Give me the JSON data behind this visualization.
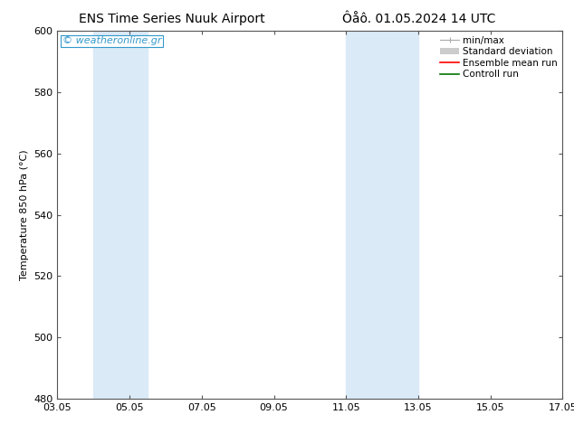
{
  "title_left": "ENS Time Series Nuuk Airport",
  "title_right": "Ôåô. 01.05.2024 14 UTC",
  "ylabel": "Temperature 850 hPa (°C)",
  "ylim": [
    480,
    600
  ],
  "yticks": [
    480,
    500,
    520,
    540,
    560,
    580,
    600
  ],
  "x_numeric": [
    3,
    5,
    7,
    9,
    11,
    13,
    15,
    17
  ],
  "xlim": [
    3,
    17
  ],
  "xtick_labels": [
    "03.05",
    "05.05",
    "07.05",
    "09.05",
    "11.05",
    "13.05",
    "15.05",
    "17.05"
  ],
  "shaded_bands": [
    {
      "x_start": 4.0,
      "x_end": 5.5,
      "color": "#daeaf7"
    },
    {
      "x_start": 11.0,
      "x_end": 13.0,
      "color": "#daeaf7"
    }
  ],
  "watermark_text": "© weatheronline.gr",
  "watermark_color": "#3399cc",
  "legend_items": [
    {
      "label": "min/max",
      "color": "#aaaaaa"
    },
    {
      "label": "Standard deviation",
      "color": "#cccccc"
    },
    {
      "label": "Ensemble mean run",
      "color": "#ff0000"
    },
    {
      "label": "Controll run",
      "color": "#007700"
    }
  ],
  "background_color": "#ffffff",
  "plot_bg_color": "#ffffff",
  "spine_color": "#555555",
  "title_fontsize": 10,
  "axis_label_fontsize": 8,
  "tick_fontsize": 8,
  "legend_fontsize": 7.5
}
